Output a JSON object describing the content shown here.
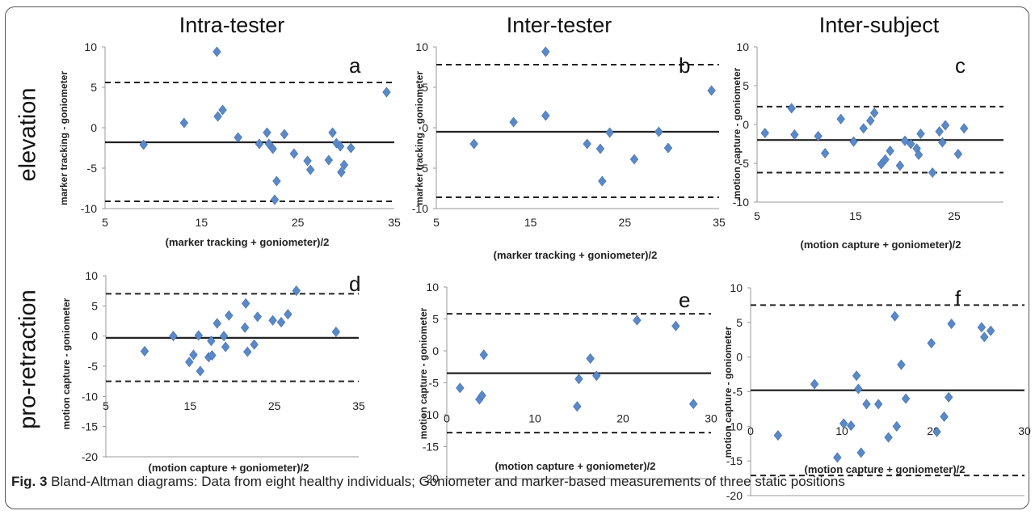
{
  "figure": {
    "column_titles": [
      "Intra-tester",
      "Inter-tester",
      "Inter-subject"
    ],
    "row_titles": [
      "elevation",
      "pro-retraction"
    ],
    "caption_label": "Fig. 3",
    "caption_text": "Bland-Altman diagrams: Data from eight healthy individuals; Goniometer and marker-based measurements of three static positions"
  },
  "chart_data": [
    {
      "panel": "a",
      "type": "scatter",
      "xlabel": "(marker tracking + goniometer)/2",
      "ylabel": "marker tracking - goniometer",
      "xlim": [
        5,
        35
      ],
      "ylim": [
        -10,
        10
      ],
      "xticks": [
        5,
        15,
        25,
        35
      ],
      "yticks": [
        10,
        5,
        0,
        -5,
        -10
      ],
      "mean": -1.8,
      "upper_loa": 5.6,
      "lower_loa": -9.1,
      "color": "#5b88c6",
      "points": [
        [
          9,
          -2.1
        ],
        [
          13.2,
          0.6
        ],
        [
          16.6,
          9.4
        ],
        [
          16.7,
          1.4
        ],
        [
          17.2,
          2.2
        ],
        [
          18.8,
          -1.2
        ],
        [
          21,
          -2
        ],
        [
          21.8,
          -0.6
        ],
        [
          22,
          -2
        ],
        [
          22.4,
          -2.6
        ],
        [
          22.8,
          -6.6
        ],
        [
          22.6,
          -8.9
        ],
        [
          23.6,
          -0.8
        ],
        [
          24.6,
          -3.2
        ],
        [
          26,
          -4.1
        ],
        [
          26.3,
          -5.2
        ],
        [
          28.2,
          -4
        ],
        [
          28.6,
          -0.6
        ],
        [
          29,
          -1.9
        ],
        [
          29.4,
          -2.3
        ],
        [
          29.5,
          -5.5
        ],
        [
          29.8,
          -4.6
        ],
        [
          30.5,
          -2.5
        ],
        [
          34.2,
          4.4
        ]
      ]
    },
    {
      "panel": "b",
      "type": "scatter",
      "xlabel": "(marker tracking + goniometer)/2",
      "ylabel": "marker tracking - goniometer",
      "xlim": [
        5,
        35
      ],
      "ylim": [
        -10,
        10
      ],
      "xticks": [
        5,
        15,
        25,
        35
      ],
      "yticks": [
        10,
        5,
        0,
        -5,
        -10
      ],
      "mean": -0.5,
      "upper_loa": 7.8,
      "lower_loa": -8.6,
      "color": "#5b88c6",
      "points": [
        [
          9,
          -2
        ],
        [
          13.2,
          0.7
        ],
        [
          16.6,
          9.4
        ],
        [
          16.6,
          1.5
        ],
        [
          21,
          -2
        ],
        [
          22.4,
          -2.6
        ],
        [
          22.6,
          -6.6
        ],
        [
          23.4,
          -0.6
        ],
        [
          26,
          -3.9
        ],
        [
          28.6,
          -0.5
        ],
        [
          29.6,
          -2.5
        ],
        [
          34.2,
          4.6
        ]
      ]
    },
    {
      "panel": "c",
      "type": "scatter",
      "xlabel": "(motion capture + goniometer)/2",
      "ylabel": "motion capture - goniometer",
      "xlim": [
        5,
        30
      ],
      "ylim": [
        -10,
        10
      ],
      "xticks": [
        5,
        15,
        25
      ],
      "yticks": [
        10,
        5,
        0,
        -5,
        -10
      ],
      "mean": -2,
      "upper_loa": 2.3,
      "lower_loa": -6.2,
      "color": "#5b88c6",
      "points": [
        [
          5.8,
          -1.1
        ],
        [
          8.5,
          2.1
        ],
        [
          8.8,
          -1.3
        ],
        [
          11.2,
          -1.5
        ],
        [
          11.9,
          -3.7
        ],
        [
          13.5,
          0.7
        ],
        [
          14.8,
          -2.2
        ],
        [
          15.8,
          -0.5
        ],
        [
          16.5,
          0.5
        ],
        [
          16.9,
          1.5
        ],
        [
          17.6,
          -5.1
        ],
        [
          18,
          -4.5
        ],
        [
          18.5,
          -3.4
        ],
        [
          19.5,
          -5.3
        ],
        [
          20,
          -2.1
        ],
        [
          20.6,
          -2.5
        ],
        [
          21.2,
          -3.1
        ],
        [
          21.4,
          -3.9
        ],
        [
          21.6,
          -1.2
        ],
        [
          22.8,
          -6.2
        ],
        [
          23.5,
          -0.9
        ],
        [
          23.8,
          -2.3
        ],
        [
          24.1,
          -0.1
        ],
        [
          25.4,
          -3.8
        ],
        [
          26,
          -0.5
        ]
      ]
    },
    {
      "panel": "d",
      "type": "scatter",
      "xlabel": "(motion capture + goniometer)/2",
      "ylabel": "motion capture - goniometer",
      "xlim": [
        5,
        35
      ],
      "ylim": [
        -20,
        10
      ],
      "xticks": [
        5,
        15,
        25,
        35
      ],
      "yticks": [
        10,
        5,
        0,
        -5,
        -10,
        -15,
        -20
      ],
      "mean": -0.3,
      "upper_loa": 7,
      "lower_loa": -7.5,
      "color": "#5b88c6",
      "points": [
        [
          9.6,
          -2.5
        ],
        [
          13,
          0
        ],
        [
          14.9,
          -4.3
        ],
        [
          15.4,
          -3.1
        ],
        [
          16,
          0.1
        ],
        [
          16.2,
          -5.8
        ],
        [
          17.2,
          -3.5
        ],
        [
          17.5,
          -0.8
        ],
        [
          17.6,
          -3.2
        ],
        [
          18.2,
          2.1
        ],
        [
          19,
          0
        ],
        [
          19.2,
          -1.8
        ],
        [
          19.6,
          3.4
        ],
        [
          21.5,
          1.4
        ],
        [
          21.6,
          5.4
        ],
        [
          21.8,
          -2.6
        ],
        [
          22.6,
          -1.4
        ],
        [
          23,
          3.2
        ],
        [
          24.8,
          2.6
        ],
        [
          25.8,
          2.3
        ],
        [
          26.6,
          3.6
        ],
        [
          27.6,
          7.5
        ],
        [
          32.3,
          0.7
        ]
      ]
    },
    {
      "panel": "e",
      "type": "scatter",
      "xlabel": "(motion capture + goniometer)/2",
      "ylabel": "motion capture - goniometer",
      "xlim": [
        0,
        30
      ],
      "ylim": [
        -20,
        10
      ],
      "xticks": [
        0,
        10,
        20,
        30
      ],
      "yticks": [
        10,
        5,
        0,
        -5,
        -10,
        -15,
        -20
      ],
      "mean": -3.5,
      "upper_loa": 5.8,
      "lower_loa": -12.8,
      "color": "#5b88c6",
      "points": [
        [
          1.5,
          -5.8
        ],
        [
          3.7,
          -7.6
        ],
        [
          4,
          -7
        ],
        [
          4.2,
          -0.6
        ],
        [
          14.8,
          -8.7
        ],
        [
          15,
          -4.4
        ],
        [
          16.3,
          -1.2
        ],
        [
          17,
          -3.9
        ],
        [
          21.6,
          4.8
        ],
        [
          26,
          3.9
        ],
        [
          28,
          -8.3
        ]
      ]
    },
    {
      "panel": "f",
      "type": "scatter",
      "xlabel": "(motion capture + goniometer)/2",
      "ylabel": "motion capture - goniometer",
      "xlim": [
        0,
        30
      ],
      "ylim": [
        -20,
        10
      ],
      "xticks": [
        0,
        10,
        20,
        30
      ],
      "yticks": [
        10,
        5,
        0,
        -5,
        -10,
        -15,
        -20
      ],
      "mean": -4.8,
      "upper_loa": 7.5,
      "lower_loa": -17.1,
      "color": "#5b88c6",
      "points": [
        [
          3,
          -11.3
        ],
        [
          7,
          -3.9
        ],
        [
          9.5,
          -14.5
        ],
        [
          10.2,
          -9.6
        ],
        [
          11,
          -9.9
        ],
        [
          11.6,
          -2.7
        ],
        [
          11.8,
          -4.6
        ],
        [
          12.1,
          -13.8
        ],
        [
          12.7,
          -6.8
        ],
        [
          14,
          -6.8
        ],
        [
          15.1,
          -11.6
        ],
        [
          15.8,
          5.9
        ],
        [
          16,
          -10
        ],
        [
          16.5,
          -1.1
        ],
        [
          17,
          -6
        ],
        [
          19.8,
          2
        ],
        [
          20.4,
          -10.8
        ],
        [
          21.2,
          -8.6
        ],
        [
          21.7,
          -5.8
        ],
        [
          22,
          4.8
        ],
        [
          25.3,
          4.3
        ],
        [
          25.6,
          2.9
        ],
        [
          26.3,
          3.8
        ]
      ]
    }
  ]
}
